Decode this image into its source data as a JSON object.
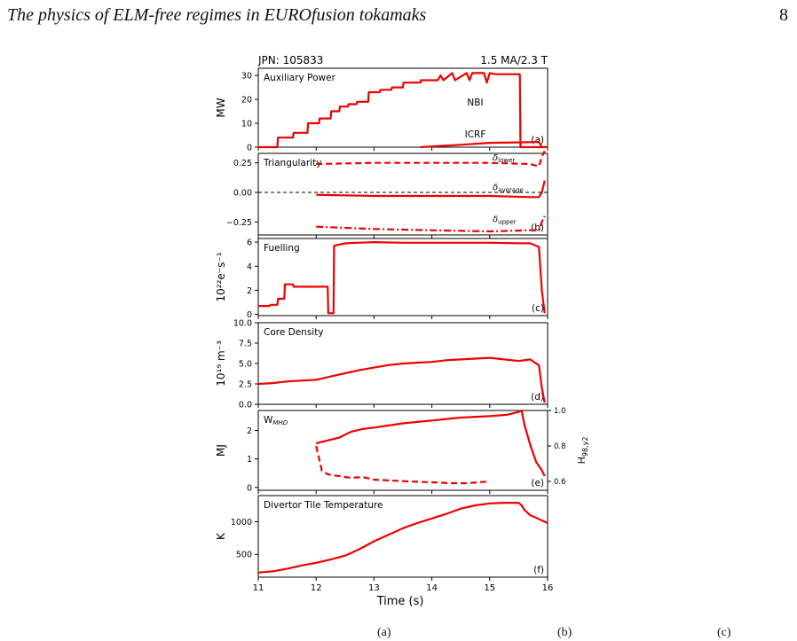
{
  "header": {
    "title": "The physics of ELM-free regimes in EUROfusion tokamaks",
    "page_number": "8"
  },
  "figure": {
    "pulse_label": "JPN: 105833",
    "plasma_params": "1.5 MA/2.3 T",
    "x_axis_label": "Time (s)",
    "x_ticks": [
      "11",
      "12",
      "13",
      "14",
      "15",
      "16"
    ]
  },
  "chart_data": [
    {
      "type": "line",
      "panel": "(a)",
      "title": "Auxiliary Power",
      "ylabel": "MW",
      "xlim": [
        11,
        16
      ],
      "ylim": [
        0,
        33
      ],
      "yticks": [
        "0",
        "10",
        "20",
        "30"
      ],
      "grid": false,
      "annotations": [
        "NBI",
        "ICRF"
      ],
      "series": [
        {
          "name": "NBI",
          "style": "solid",
          "color": "#ee0000",
          "x": [
            11.0,
            11.33,
            11.34,
            11.6,
            11.61,
            11.85,
            11.86,
            12.05,
            12.06,
            12.25,
            12.26,
            12.4,
            12.41,
            12.55,
            12.56,
            12.7,
            12.71,
            12.9,
            12.91,
            13.1,
            13.11,
            13.3,
            13.31,
            13.5,
            13.51,
            13.8,
            13.81,
            14.1,
            14.15,
            14.2,
            14.3,
            14.35,
            14.4,
            14.6,
            14.65,
            14.7,
            14.9,
            14.95,
            15.0,
            15.1,
            15.4,
            15.5,
            15.52,
            15.53,
            16.0
          ],
          "y": [
            0,
            0,
            4,
            4,
            6,
            6,
            10,
            10,
            12,
            12,
            15,
            15,
            17,
            17,
            18,
            18,
            19,
            19,
            23,
            23,
            24,
            24,
            25,
            25,
            27,
            27,
            28,
            28,
            30,
            28,
            30,
            31,
            28,
            31,
            28,
            31,
            31,
            27,
            31,
            30.5,
            30.5,
            30.5,
            30.5,
            0,
            0
          ]
        },
        {
          "name": "ICRF",
          "style": "solid",
          "color": "#ee0000",
          "x": [
            13.8,
            14.0,
            14.5,
            15.0,
            15.5,
            15.85,
            15.9
          ],
          "y": [
            0,
            0.3,
            1.0,
            1.8,
            2.0,
            2.2,
            0
          ]
        }
      ]
    },
    {
      "type": "line",
      "panel": "(b)",
      "title": "Triangularity",
      "ylabel": "",
      "xlim": [
        11,
        16
      ],
      "ylim": [
        -0.36,
        0.33
      ],
      "yticks": [
        "−0.25",
        "0.00",
        "0.25"
      ],
      "grid": false,
      "series": [
        {
          "name": "δlower",
          "style": "dashed",
          "color": "#ee0000",
          "x": [
            12.0,
            13.0,
            14.0,
            15.0,
            15.7,
            15.85,
            15.9,
            15.95
          ],
          "y": [
            0.24,
            0.25,
            0.25,
            0.25,
            0.24,
            0.22,
            0.3,
            0.35
          ]
        },
        {
          "name": "δaverage",
          "style": "solid",
          "color": "#ee0000",
          "x": [
            12.0,
            13.0,
            14.0,
            15.0,
            15.7,
            15.85,
            15.9,
            15.95
          ],
          "y": [
            -0.02,
            -0.03,
            -0.03,
            -0.03,
            -0.04,
            -0.04,
            0.0,
            0.1
          ]
        },
        {
          "name": "δupper",
          "style": "dashdot",
          "color": "#ee0000",
          "x": [
            12.0,
            12.5,
            13.0,
            14.0,
            15.0,
            15.7,
            15.85,
            15.9,
            15.95
          ],
          "y": [
            -0.29,
            -0.3,
            -0.31,
            -0.32,
            -0.33,
            -0.32,
            -0.32,
            -0.25,
            -0.2
          ]
        },
        {
          "name": "zero",
          "style": "dashed-thin",
          "color": "#000000",
          "x": [
            11.0,
            16.0
          ],
          "y": [
            0.0,
            0.0
          ]
        }
      ],
      "legend_labels": [
        {
          "base": "δ",
          "sub": "lower"
        },
        {
          "base": "δ",
          "sub": "average"
        },
        {
          "base": "δ",
          "sub": "upper"
        }
      ]
    },
    {
      "type": "line",
      "panel": "(c)",
      "title": "Fuelling",
      "ylabel": "10²²e⁻s⁻¹",
      "xlim": [
        11,
        16
      ],
      "ylim": [
        -0.1,
        6.3
      ],
      "yticks": [
        "0",
        "2",
        "4",
        "6"
      ],
      "grid": false,
      "series": [
        {
          "name": "Fuelling",
          "style": "solid",
          "color": "#ee0000",
          "x": [
            11.0,
            11.2,
            11.21,
            11.33,
            11.34,
            11.45,
            11.46,
            11.6,
            11.61,
            12.2,
            12.21,
            12.3,
            12.31,
            12.5,
            13.0,
            13.5,
            14.0,
            14.5,
            15.0,
            15.5,
            15.7,
            15.85,
            15.9,
            15.95
          ],
          "y": [
            0.7,
            0.7,
            0.8,
            0.8,
            1.3,
            1.3,
            2.5,
            2.5,
            2.3,
            2.3,
            0.1,
            0.1,
            5.7,
            5.9,
            6.0,
            5.95,
            5.95,
            5.95,
            5.95,
            5.9,
            5.9,
            5.6,
            2.0,
            0.1
          ]
        }
      ]
    },
    {
      "type": "line",
      "panel": "(d)",
      "title": "Core Density",
      "ylabel": "10¹⁹ m⁻³",
      "xlim": [
        11,
        16
      ],
      "ylim": [
        0,
        10
      ],
      "yticks": [
        "0.0",
        "2.5",
        "5.0",
        "7.5",
        "10.0"
      ],
      "grid": false,
      "series": [
        {
          "name": "Core Density",
          "style": "solid",
          "color": "#ee0000",
          "x": [
            11.0,
            11.25,
            11.5,
            11.75,
            12.0,
            12.25,
            12.5,
            12.75,
            13.0,
            13.25,
            13.5,
            13.75,
            14.0,
            14.25,
            14.5,
            14.75,
            15.0,
            15.25,
            15.5,
            15.7,
            15.8,
            15.85,
            15.9,
            15.95
          ],
          "y": [
            2.5,
            2.6,
            2.8,
            2.9,
            3.0,
            3.4,
            3.8,
            4.2,
            4.5,
            4.8,
            5.0,
            5.1,
            5.2,
            5.4,
            5.5,
            5.6,
            5.7,
            5.5,
            5.3,
            5.5,
            5.0,
            4.8,
            2.0,
            0.2
          ]
        }
      ]
    },
    {
      "type": "line",
      "panel": "(e)",
      "title": "W_MHD",
      "ylabel": "MJ",
      "y2label": "H98,y2",
      "xlim": [
        11,
        16
      ],
      "ylim": [
        -0.1,
        2.7
      ],
      "y2lim": [
        0.55,
        1.0
      ],
      "yticks": [
        "0",
        "1",
        "2"
      ],
      "y2ticks": [
        "0.6",
        "0.8",
        "1.0"
      ],
      "grid": false,
      "series": [
        {
          "name": "W_MHD",
          "style": "solid",
          "color": "#ee0000",
          "axis": "left",
          "x": [
            12.0,
            12.2,
            12.4,
            12.6,
            12.8,
            13.0,
            13.5,
            14.0,
            14.5,
            15.0,
            15.3,
            15.5,
            15.55,
            15.6,
            15.7,
            15.8,
            15.9,
            15.95
          ],
          "y": [
            1.55,
            1.65,
            1.75,
            1.95,
            2.05,
            2.1,
            2.25,
            2.35,
            2.45,
            2.5,
            2.55,
            2.65,
            2.7,
            2.2,
            1.5,
            0.9,
            0.6,
            0.4
          ]
        },
        {
          "name": "H98,y2",
          "style": "dashed",
          "color": "#ee0000",
          "axis": "right",
          "x": [
            12.0,
            12.1,
            12.2,
            12.4,
            12.6,
            12.8,
            13.0,
            13.3,
            13.6,
            14.0,
            14.3,
            14.6,
            15.0
          ],
          "y": [
            0.8,
            0.66,
            0.64,
            0.63,
            0.62,
            0.625,
            0.61,
            0.605,
            0.6,
            0.595,
            0.59,
            0.59,
            0.6
          ]
        }
      ]
    },
    {
      "type": "line",
      "panel": "(f)",
      "title": "Divertor Tile Temperature",
      "ylabel": "K",
      "xlim": [
        11,
        16
      ],
      "ylim": [
        150,
        1400
      ],
      "yticks": [
        "500",
        "1000"
      ],
      "grid": false,
      "series": [
        {
          "name": "Divertor Tile Temperature",
          "style": "solid",
          "color": "#ee0000",
          "x": [
            11.0,
            11.25,
            11.5,
            11.75,
            12.0,
            12.25,
            12.5,
            12.75,
            13.0,
            13.25,
            13.5,
            13.75,
            14.0,
            14.25,
            14.5,
            14.75,
            15.0,
            15.25,
            15.5,
            15.55,
            15.6,
            15.7,
            15.8,
            15.9,
            16.0
          ],
          "y": [
            220,
            240,
            280,
            330,
            370,
            420,
            480,
            580,
            700,
            800,
            900,
            980,
            1050,
            1120,
            1200,
            1250,
            1280,
            1290,
            1290,
            1250,
            1180,
            1100,
            1060,
            1020,
            980
          ]
        }
      ]
    }
  ],
  "caption_fragments": [
    "(a)",
    "(b)",
    "(c)"
  ]
}
